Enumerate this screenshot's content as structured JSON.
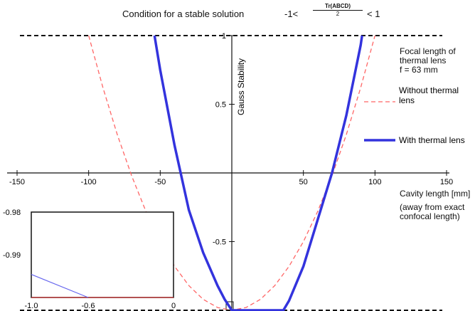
{
  "title": {
    "prefix": "Condition for a stable solution",
    "lhs": "-1<",
    "numerator": "Tr(ABCD)",
    "denominator": "2",
    "rhs": "< 1"
  },
  "annotations": {
    "focal_title": [
      "Focal length of",
      "thermal lens"
    ],
    "focal_value": "f = 63 mm",
    "xlabel_note": [
      "(away from exact",
      "confocal length)"
    ]
  },
  "chart_data": [
    {
      "type": "line",
      "xlabel": "Cavity length [mm]",
      "ylabel": "Gauss Stability",
      "xlim": [
        -150,
        150
      ],
      "ylim": [
        -1,
        1
      ],
      "x_ticks": [
        -150,
        -100,
        -50,
        0,
        50,
        100,
        150
      ],
      "x_tick_labels": [
        "-150",
        "-100",
        "-50",
        "",
        "50",
        "100",
        "150"
      ],
      "y_ticks": [
        1,
        0.5,
        -0.5
      ],
      "y_tick_labels": [
        "1",
        "0.5",
        "-0.5"
      ],
      "reference_lines": [
        1,
        -1
      ],
      "legend": "right",
      "series": [
        {
          "name": "Without thermal lens",
          "color": "#ff6666",
          "style": "dashed",
          "x": [
            -100,
            -90,
            -80,
            -70,
            -60,
            -50,
            -40,
            -30,
            -20,
            -10,
            0,
            10,
            20,
            30,
            40,
            50,
            60,
            70,
            80,
            90,
            100
          ],
          "y": [
            1.0,
            0.62,
            0.28,
            -0.02,
            -0.28,
            -0.5,
            -0.68,
            -0.82,
            -0.92,
            -0.98,
            -1.0,
            -0.98,
            -0.92,
            -0.82,
            -0.68,
            -0.5,
            -0.28,
            -0.02,
            0.28,
            0.62,
            1.0
          ]
        },
        {
          "name": "With thermal lens",
          "color": "#3333dd",
          "style": "solid",
          "x": [
            -54,
            -50,
            -40,
            -30,
            -20,
            -10,
            -5,
            0,
            36,
            40,
            50,
            60,
            70,
            80,
            90,
            91
          ],
          "y": [
            1.0,
            0.75,
            0.2,
            -0.27,
            -0.58,
            -0.82,
            -0.92,
            -1.0,
            -1.0,
            -0.93,
            -0.68,
            -0.34,
            0.0,
            0.42,
            0.93,
            1.0
          ]
        }
      ]
    },
    {
      "type": "line",
      "inset": true,
      "xlim": [
        -1.0,
        0
      ],
      "ylim": [
        -1.0,
        -0.98
      ],
      "x_tick_labels": [
        "-1.0",
        "-0.6",
        "0"
      ],
      "y_tick_labels": [
        "-0.98",
        "-0.99"
      ],
      "series": [
        {
          "name": "Without thermal lens",
          "color": "#cc3333",
          "style": "solid",
          "x": [
            -1.0,
            -0.6,
            0
          ],
          "y": [
            -1.0,
            -1.0,
            -1.0
          ]
        },
        {
          "name": "With thermal lens",
          "color": "#6666ee",
          "style": "solid",
          "x": [
            -1.0,
            -0.6
          ],
          "y": [
            -0.9946,
            -1.0
          ]
        }
      ]
    }
  ]
}
